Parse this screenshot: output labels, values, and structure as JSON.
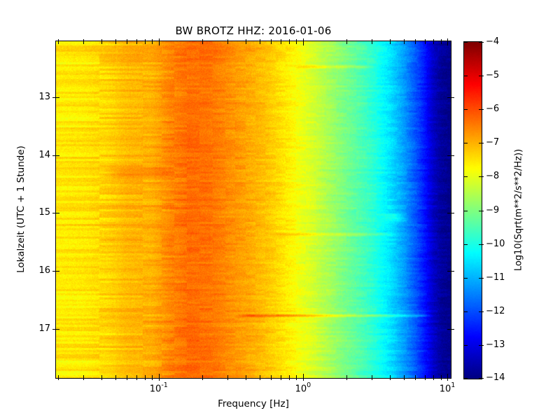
{
  "chart_data": {
    "type": "heatmap",
    "variant": "seismic-spectrogram",
    "colormap": "jet",
    "title": "BW BROTZ HHZ: 2016-01-06",
    "xlabel": "Frequency [Hz]",
    "ylabel": "Lokalzeit (UTC + 1 Stunde)",
    "x_scale": "log",
    "x_range_hz": [
      0.0194,
      10.57
    ],
    "x_major_ticks": [
      {
        "base": "10",
        "exp": "-1",
        "hz": 0.1
      },
      {
        "base": "10",
        "exp": "0",
        "hz": 1
      },
      {
        "base": "10",
        "exp": "1",
        "hz": 10
      }
    ],
    "x_minor_ticks_hz": [
      0.02,
      0.03,
      0.04,
      0.05,
      0.06,
      0.07,
      0.08,
      0.09,
      0.2,
      0.3,
      0.4,
      0.5,
      0.6,
      0.7,
      0.8,
      0.9,
      2,
      3,
      4,
      5,
      6,
      7,
      8,
      9
    ],
    "y_range_hours_local": [
      12.03,
      17.85
    ],
    "y_ticks": [
      {
        "label": "13",
        "hour": 13
      },
      {
        "label": "14",
        "hour": 14
      },
      {
        "label": "15",
        "hour": 15
      },
      {
        "label": "16",
        "hour": 16
      },
      {
        "label": "17",
        "hour": 17
      }
    ],
    "colorbar": {
      "label": "Log10(Sqrt(m**2/s**2/Hz))",
      "min": -14,
      "max": -4,
      "ticks": [
        {
          "label": "−4",
          "value": -4
        },
        {
          "label": "−5",
          "value": -5
        },
        {
          "label": "−6",
          "value": -6
        },
        {
          "label": "−7",
          "value": -7
        },
        {
          "label": "−8",
          "value": -8
        },
        {
          "label": "−9",
          "value": -9
        },
        {
          "label": "−10",
          "value": -10
        },
        {
          "label": "−11",
          "value": -11
        },
        {
          "label": "−12",
          "value": -12
        },
        {
          "label": "−13",
          "value": -13
        },
        {
          "label": "−14",
          "value": -14
        }
      ]
    },
    "spectrum_profile_hz_level": [
      [
        0.0194,
        -7.55
      ],
      [
        0.03,
        -7.5
      ],
      [
        0.045,
        -7.3
      ],
      [
        0.06,
        -7.05
      ],
      [
        0.09,
        -6.95
      ],
      [
        0.12,
        -6.55
      ],
      [
        0.16,
        -6.3
      ],
      [
        0.22,
        -6.35
      ],
      [
        0.3,
        -6.6
      ],
      [
        0.42,
        -6.9
      ],
      [
        0.55,
        -7.15
      ],
      [
        0.7,
        -7.45
      ],
      [
        0.9,
        -7.8
      ],
      [
        1.2,
        -8.2
      ],
      [
        1.6,
        -8.7
      ],
      [
        2.2,
        -9.25
      ],
      [
        3.0,
        -9.8
      ],
      [
        4.0,
        -10.5
      ],
      [
        5.0,
        -11.2
      ],
      [
        6.0,
        -11.9
      ],
      [
        7.0,
        -12.6
      ],
      [
        8.0,
        -13.3
      ],
      [
        9.0,
        -13.7
      ],
      [
        10.57,
        -13.9
      ]
    ],
    "events": [
      {
        "time_local": "12:28",
        "f_hz": [
          0.8,
          3.4
        ],
        "boost": 0.65,
        "duration_h": 0.05
      },
      {
        "time_local": "14:18",
        "f_hz": [
          0.04,
          0.13
        ],
        "boost": 0.4,
        "duration_h": 0.2
      },
      {
        "time_local": "15:04",
        "f_hz": [
          3.3,
          5.6
        ],
        "boost": 0.85,
        "duration_h": 0.14
      },
      {
        "time_local": "15:22",
        "f_hz": [
          0.6,
          4.6
        ],
        "boost": 0.5,
        "duration_h": 0.05
      },
      {
        "time_local": "16:46",
        "f_hz": [
          0.33,
          8.8
        ],
        "boost": 1.0,
        "duration_h": 0.05
      }
    ],
    "value_range": [
      -14,
      -4
    ],
    "colors": {
      "background": "#ffffff",
      "axes": "#000000",
      "text": "#000000"
    }
  }
}
